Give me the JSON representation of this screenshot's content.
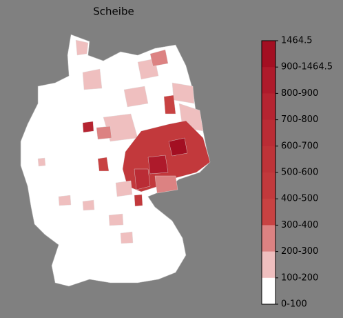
{
  "title": "Scheibe",
  "colorbar": {
    "labels": [
      "1464.5",
      "900-1464.5",
      "800-900",
      "700-800",
      "600-700",
      "500-600",
      "400-500",
      "300-400",
      "200-300",
      "100-200",
      "0-100"
    ],
    "colors": [
      "#a30f22",
      "#ae1a2b",
      "#b52431",
      "#ba2c35",
      "#be3338",
      "#c2393c",
      "#c84242",
      "#dc8282",
      "#efbfbf",
      "#ffffff"
    ]
  }
}
